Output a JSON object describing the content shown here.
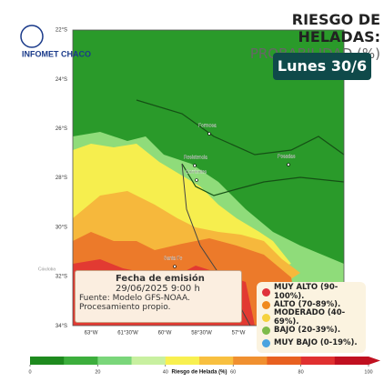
{
  "header": {
    "brand": "INFOMET CHACO",
    "title": "RIESGO DE HELADAS:",
    "subtitle": "PROBABILIDAD (%)",
    "day": "Lunes 30/6"
  },
  "map": {
    "lat_labels": [
      "22°S",
      "24°S",
      "26°S",
      "28°S",
      "30°S",
      "32°S",
      "34°S"
    ],
    "lon_labels": [
      "63°W",
      "61°30'W",
      "60°W",
      "58°30'W",
      "57°W"
    ],
    "cities": [
      "Formosa",
      "Resistencia",
      "Corrientes",
      "Posadas",
      "Santa Fe",
      "Córdoba"
    ]
  },
  "issue": {
    "heading": "Fecha de emisión",
    "date": "29/06/2025 9:00 h",
    "source": "Fuente: Modelo GFS-NOAA. Procesamiento propio."
  },
  "legend": [
    {
      "label": "MUY ALTO (90-100%).",
      "color": "#e0323c"
    },
    {
      "label": "ALTO (70-89%).",
      "color": "#f08a1e"
    },
    {
      "label": "MODERADO (40-69%).",
      "color": "#f5d23c"
    },
    {
      "label": "BAJO (20-39%).",
      "color": "#7dbb4a"
    },
    {
      "label": "MUY BAJO (0-19%).",
      "color": "#4aa3e0"
    }
  ],
  "colorbar": {
    "label": "Riesgo de Helada (%)",
    "lim": [
      0,
      100
    ],
    "ticks": [
      0,
      20,
      40,
      60,
      80,
      100
    ],
    "colors": [
      "#1e8a1e",
      "#3cae3c",
      "#7ad67a",
      "#c8f0a0",
      "#f8f050",
      "#f8c040",
      "#f09030",
      "#e86020",
      "#e03030",
      "#c01020"
    ]
  }
}
